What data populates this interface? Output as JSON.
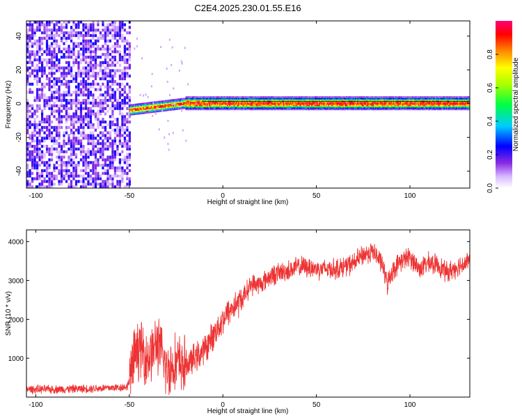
{
  "title": "C2E4.2025.230.01.55.E16",
  "chart_data": [
    {
      "type": "heatmap",
      "xlabel": "Height of straight line (km)",
      "ylabel": "Frequency (Hz)",
      "xlim": [
        -105,
        132
      ],
      "ylim": [
        -50,
        49
      ],
      "xticks": [
        -100,
        -50,
        0,
        50,
        100
      ],
      "yticks": [
        -40,
        -20,
        0,
        20,
        40
      ],
      "colorbar": {
        "label": "Normalized spectral amplitude",
        "range": [
          0,
          1
        ],
        "ticks": [
          0.0,
          0.2,
          0.4,
          0.6,
          0.8
        ]
      },
      "regions": [
        {
          "x": [
            -105,
            -50
          ],
          "freq": [
            -50,
            49
          ],
          "amplitude_range": [
            0.05,
            0.25
          ]
        },
        {
          "x": [
            -50,
            -20
          ],
          "freq_center": [
            -4,
            0
          ],
          "amplitude_peak": 1.0
        },
        {
          "x": [
            -20,
            132
          ],
          "freq_center": 0,
          "amplitude_peak": 1.0
        }
      ],
      "grid": false
    },
    {
      "type": "line",
      "xlabel": "Height of straight line (km)",
      "ylabel": "SNR (10 * v/v)",
      "xlim": [
        -105,
        132
      ],
      "ylim": [
        0,
        4300
      ],
      "xticks": [
        -100,
        -50,
        0,
        50,
        100
      ],
      "yticks": [
        1000,
        2000,
        3000,
        4000
      ],
      "color": "#ee3333",
      "series": [
        {
          "x": [
            -105,
            -90,
            -70,
            -55,
            -51,
            -48,
            -45,
            -40,
            -35,
            -30,
            -25,
            -20,
            -15,
            -10,
            -5,
            0,
            5,
            10,
            15,
            20,
            25,
            30,
            35,
            40,
            45,
            50,
            55,
            60,
            65,
            70,
            75,
            80,
            85,
            88,
            90,
            95,
            100,
            105,
            110,
            115,
            120,
            125,
            132
          ],
          "y": [
            200,
            200,
            220,
            250,
            270,
            900,
            1300,
            1000,
            1400,
            700,
            900,
            800,
            1000,
            1200,
            1600,
            2000,
            2300,
            2500,
            2900,
            2900,
            3100,
            3200,
            3250,
            3350,
            3350,
            3300,
            3300,
            3300,
            3350,
            3450,
            3650,
            3750,
            3450,
            2900,
            3200,
            3500,
            3600,
            3300,
            3450,
            3400,
            3200,
            3350,
            3500
          ]
        }
      ],
      "grid": false
    }
  ]
}
